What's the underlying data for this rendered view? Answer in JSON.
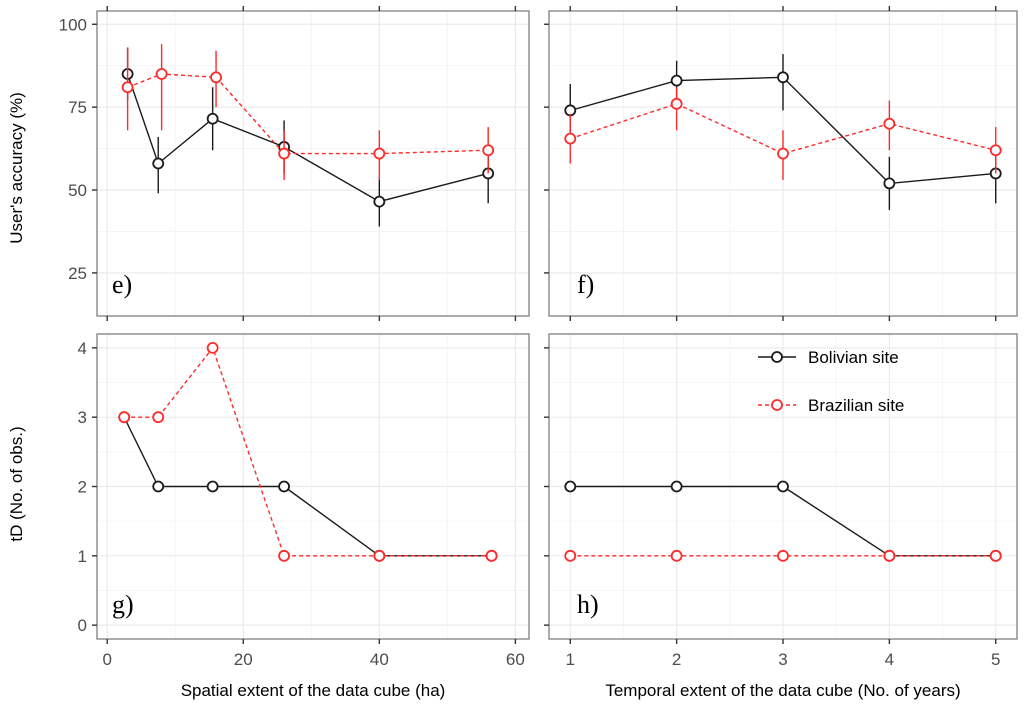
{
  "colors": {
    "bolivian": "#1a1a1a",
    "brazilian": "#ff2a2a",
    "grid": "#ebebeb",
    "frame": "#7f7f7f"
  },
  "legend": {
    "items": [
      "Bolivian site",
      "Brazilian site"
    ]
  },
  "chart_data": [
    {
      "panel": "e)",
      "type": "line",
      "xlabel": "",
      "ylabel": "User's accuracy (%)",
      "xlim": [
        -1.5,
        62
      ],
      "ylim": [
        12,
        104
      ],
      "xticks": [
        0,
        20,
        40,
        60
      ],
      "yticks": [
        25,
        50,
        75,
        100
      ],
      "show_x_labels": false,
      "show_y_labels": true,
      "series": [
        {
          "name": "Bolivian site",
          "x": [
            3,
            7.5,
            15.5,
            26,
            40,
            56
          ],
          "y": [
            85,
            58,
            71.5,
            63,
            46.5,
            55
          ],
          "err": [
            [
              77,
              93
            ],
            [
              49,
              66
            ],
            [
              62,
              81
            ],
            [
              55,
              71
            ],
            [
              39,
              54
            ],
            [
              46,
              63
            ]
          ]
        },
        {
          "name": "Brazilian site",
          "x": [
            3,
            8,
            16,
            26,
            40,
            56
          ],
          "y": [
            81,
            85,
            84,
            61,
            61,
            62
          ],
          "err": [
            [
              68,
              93
            ],
            [
              68,
              94
            ],
            [
              75,
              92
            ],
            [
              53,
              68
            ],
            [
              53,
              68
            ],
            [
              55,
              69
            ]
          ]
        }
      ]
    },
    {
      "panel": "f)",
      "type": "line",
      "xlabel": "",
      "ylabel": "",
      "xlim": [
        0.8,
        5.2
      ],
      "ylim": [
        12,
        104
      ],
      "xticks": [
        1,
        2,
        3,
        4,
        5
      ],
      "yticks": [
        25,
        50,
        75,
        100
      ],
      "show_x_labels": false,
      "show_y_labels": false,
      "series": [
        {
          "name": "Bolivian site",
          "x": [
            1,
            2,
            3,
            4,
            5
          ],
          "y": [
            74,
            83,
            84,
            52,
            55
          ],
          "err": [
            [
              65,
              82
            ],
            [
              76,
              89
            ],
            [
              74,
              91
            ],
            [
              44,
              60
            ],
            [
              46,
              63
            ]
          ]
        },
        {
          "name": "Brazilian site",
          "x": [
            1,
            2,
            3,
            4,
            5
          ],
          "y": [
            65.5,
            76,
            61,
            70,
            62
          ],
          "err": [
            [
              58,
              73
            ],
            [
              68,
              81
            ],
            [
              53,
              68
            ],
            [
              62,
              77
            ],
            [
              55,
              69
            ]
          ]
        }
      ]
    },
    {
      "panel": "g)",
      "type": "line",
      "xlabel": "Spatial extent of the data cube (ha)",
      "ylabel": "tD (No. of obs.)",
      "xlim": [
        -1.5,
        62
      ],
      "ylim": [
        -0.2,
        4.2
      ],
      "xticks": [
        0,
        20,
        40,
        60
      ],
      "yticks": [
        0,
        1,
        2,
        3,
        4
      ],
      "show_x_labels": true,
      "show_y_labels": true,
      "series": [
        {
          "name": "Bolivian site",
          "x": [
            2.5,
            7.5,
            15.5,
            26,
            40,
            56.5
          ],
          "y": [
            3,
            2,
            2,
            2,
            1,
            1
          ]
        },
        {
          "name": "Brazilian site",
          "x": [
            2.5,
            7.5,
            15.5,
            26,
            40,
            56.5
          ],
          "y": [
            3,
            3,
            4,
            1,
            1,
            1
          ]
        }
      ]
    },
    {
      "panel": "h)",
      "type": "line",
      "xlabel": "Temporal extent of the data cube (No. of years)",
      "ylabel": "",
      "xlim": [
        0.8,
        5.2
      ],
      "ylim": [
        -0.2,
        4.2
      ],
      "xticks": [
        1,
        2,
        3,
        4,
        5
      ],
      "yticks": [
        0,
        1,
        2,
        3,
        4
      ],
      "show_x_labels": true,
      "show_y_labels": false,
      "series": [
        {
          "name": "Bolivian site",
          "x": [
            1,
            2,
            3,
            4,
            5
          ],
          "y": [
            2,
            2,
            2,
            1,
            1
          ]
        },
        {
          "name": "Brazilian site",
          "x": [
            1,
            2,
            3,
            4,
            5
          ],
          "y": [
            1,
            1,
            1,
            1,
            1
          ]
        }
      ]
    }
  ]
}
